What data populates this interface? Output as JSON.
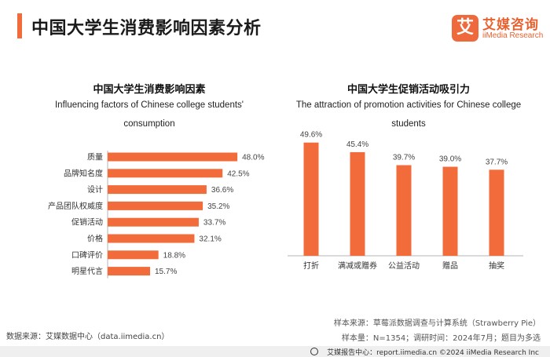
{
  "header": {
    "title": "中国大学生消费影响因素分析",
    "logo_mark": "艾",
    "logo_cn": "艾媒咨询",
    "logo_en": "iiMedia Research"
  },
  "colors": {
    "accent": "#f26b3a",
    "bar": "#f26b3a"
  },
  "chart_data": [
    {
      "type": "bar",
      "orientation": "horizontal",
      "title": "中国大学生消费影响因素",
      "subtitle": "Influencing factors of Chinese college students' consumption",
      "subtitle_lines": [
        "Influencing factors of Chinese college students'",
        "consumption"
      ],
      "categories": [
        "质量",
        "品牌知名度",
        "设计",
        "产品团队权威度",
        "促销活动",
        "价格",
        "口碑评价",
        "明星代言"
      ],
      "values": [
        48.0,
        42.5,
        36.6,
        35.2,
        33.7,
        32.1,
        18.8,
        15.7
      ],
      "value_labels": [
        "48.0%",
        "42.5%",
        "36.6%",
        "35.2%",
        "33.7%",
        "32.1%",
        "18.8%",
        "15.7%"
      ],
      "unit": "%",
      "xlim": [
        0,
        50
      ]
    },
    {
      "type": "bar",
      "orientation": "vertical",
      "title": "中国大学生促销活动吸引力",
      "subtitle": "The attraction of promotion activities for Chinese college students",
      "subtitle_lines": [
        "The attraction of promotion activities for Chinese college",
        "students"
      ],
      "categories": [
        "打折",
        "满减或赠券",
        "公益活动",
        "赠品",
        "抽奖"
      ],
      "values": [
        49.6,
        45.4,
        39.7,
        39.0,
        37.7
      ],
      "value_labels": [
        "49.6%",
        "45.4%",
        "39.7%",
        "39.0%",
        "37.7%"
      ],
      "unit": "%",
      "ylim": [
        0,
        55
      ]
    }
  ],
  "sources": {
    "data_source": "数据来源：艾媒数据中心（data.iimedia.cn）",
    "sample_source": "样本来源：草莓派数据调查与计算系统（Strawberry Pie）",
    "sample_info": "样本量：N=1354；调研时间：2024年7月；题目为多选"
  },
  "footer": {
    "text": "艾媒报告中心：report.iimedia.cn    ©2024  iiMedia Research  Inc"
  }
}
